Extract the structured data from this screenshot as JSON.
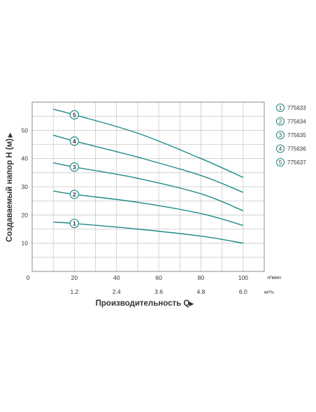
{
  "chart_data": {
    "type": "line",
    "xlabel": "Производительность Q",
    "ylabel": "Создаваемый напор H (м)",
    "x_unit_primary": "л/мин",
    "x_unit_secondary": "м³/ч",
    "xlim": [
      0,
      110
    ],
    "ylim": [
      0,
      60
    ],
    "x_ticks_primary": [
      "0",
      "20",
      "40",
      "60",
      "80",
      "100"
    ],
    "x_ticks_secondary": [
      "1.2",
      "2.4",
      "3.6",
      "4.8",
      "6.0"
    ],
    "y_ticks": [
      "10",
      "20",
      "30",
      "40",
      "50"
    ],
    "grid": true,
    "legend_position": "right",
    "colors": {
      "curve": "#1f8a8a",
      "grid": "#c9c9c9",
      "frame": "#8a8a8a",
      "text": "#333333"
    },
    "series": [
      {
        "name": "775633",
        "marker": "1",
        "x": [
          10,
          20,
          50,
          80,
          100
        ],
        "y": [
          17.5,
          17,
          15,
          12.5,
          10
        ]
      },
      {
        "name": "775634",
        "marker": "2",
        "x": [
          10,
          20,
          50,
          80,
          100
        ],
        "y": [
          28.5,
          27.3,
          24.5,
          20.5,
          16.3
        ]
      },
      {
        "name": "775635",
        "marker": "3",
        "x": [
          10,
          20,
          50,
          80,
          100
        ],
        "y": [
          38.5,
          37,
          33,
          27.5,
          21.5
        ]
      },
      {
        "name": "775636",
        "marker": "4",
        "x": [
          10,
          20,
          50,
          80,
          100
        ],
        "y": [
          48.3,
          46.2,
          40.5,
          34,
          28
        ]
      },
      {
        "name": "775637",
        "marker": "5",
        "x": [
          10,
          20,
          50,
          80,
          100
        ],
        "y": [
          57.5,
          55.5,
          49,
          40,
          33.3
        ]
      }
    ]
  }
}
